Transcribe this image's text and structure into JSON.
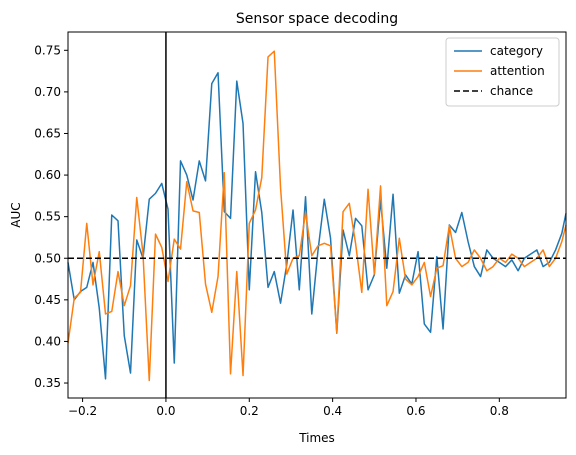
{
  "chart_data": {
    "type": "line",
    "title": "Sensor space decoding",
    "xlabel": "Times",
    "ylabel": "AUC",
    "xlim": [
      -0.235,
      0.96
    ],
    "ylim": [
      0.332,
      0.772
    ],
    "xticks": [
      -0.2,
      0.0,
      0.2,
      0.4,
      0.6,
      0.8
    ],
    "xtick_labels": [
      "−0.2",
      "0.0",
      "0.2",
      "0.4",
      "0.6",
      "0.8"
    ],
    "yticks": [
      0.35,
      0.4,
      0.45,
      0.5,
      0.55,
      0.6,
      0.65,
      0.7,
      0.75
    ],
    "ytick_labels": [
      "0.35",
      "0.40",
      "0.45",
      "0.50",
      "0.55",
      "0.60",
      "0.65",
      "0.70",
      "0.75"
    ],
    "grid": false,
    "legend_position": "top-right",
    "chance_level": 0.5,
    "onset_line_x": 0.0,
    "x": [
      -0.235,
      -0.22,
      -0.205,
      -0.19,
      -0.175,
      -0.16,
      -0.145,
      -0.13,
      -0.115,
      -0.1,
      -0.085,
      -0.07,
      -0.055,
      -0.04,
      -0.025,
      -0.01,
      0.005,
      0.02,
      0.035,
      0.05,
      0.065,
      0.08,
      0.095,
      0.11,
      0.125,
      0.14,
      0.155,
      0.17,
      0.185,
      0.2,
      0.215,
      0.23,
      0.245,
      0.26,
      0.275,
      0.29,
      0.305,
      0.32,
      0.335,
      0.35,
      0.365,
      0.38,
      0.395,
      0.41,
      0.425,
      0.44,
      0.455,
      0.47,
      0.485,
      0.5,
      0.515,
      0.53,
      0.545,
      0.56,
      0.575,
      0.59,
      0.605,
      0.62,
      0.635,
      0.65,
      0.665,
      0.68,
      0.695,
      0.71,
      0.725,
      0.74,
      0.755,
      0.77,
      0.785,
      0.8,
      0.815,
      0.83,
      0.845,
      0.86,
      0.875,
      0.89,
      0.905,
      0.92,
      0.935,
      0.95,
      0.96
    ],
    "series": [
      {
        "name": "category",
        "color": "#1f77b4",
        "values": [
          0.495,
          0.45,
          0.46,
          0.465,
          0.495,
          0.44,
          0.355,
          0.552,
          0.545,
          0.407,
          0.362,
          0.522,
          0.5,
          0.571,
          0.578,
          0.59,
          0.559,
          0.374,
          0.617,
          0.6,
          0.57,
          0.617,
          0.593,
          0.71,
          0.723,
          0.556,
          0.548,
          0.713,
          0.662,
          0.462,
          0.604,
          0.555,
          0.465,
          0.484,
          0.446,
          0.493,
          0.558,
          0.462,
          0.574,
          0.433,
          0.51,
          0.571,
          0.524,
          0.41,
          0.534,
          0.503,
          0.548,
          0.539,
          0.462,
          0.48,
          0.57,
          0.488,
          0.577,
          0.458,
          0.48,
          0.469,
          0.508,
          0.421,
          0.411,
          0.502,
          0.415,
          0.54,
          0.531,
          0.555,
          0.52,
          0.49,
          0.478,
          0.51,
          0.5,
          0.495,
          0.49,
          0.498,
          0.485,
          0.5,
          0.505,
          0.51,
          0.49,
          0.495,
          0.51,
          0.53,
          0.554
        ]
      },
      {
        "name": "attention",
        "color": "#ff7f0e",
        "values": [
          0.398,
          0.452,
          0.459,
          0.542,
          0.468,
          0.508,
          0.433,
          0.436,
          0.484,
          0.443,
          0.467,
          0.573,
          0.505,
          0.353,
          0.529,
          0.513,
          0.472,
          0.523,
          0.511,
          0.592,
          0.557,
          0.555,
          0.469,
          0.435,
          0.478,
          0.603,
          0.361,
          0.484,
          0.359,
          0.542,
          0.558,
          0.597,
          0.742,
          0.749,
          0.585,
          0.481,
          0.5,
          0.503,
          0.555,
          0.503,
          0.515,
          0.518,
          0.515,
          0.411,
          0.556,
          0.566,
          0.518,
          0.459,
          0.583,
          0.481,
          0.587,
          0.443,
          0.46,
          0.524,
          0.475,
          0.468,
          0.478,
          0.495,
          0.454,
          0.488,
          0.491,
          0.539,
          0.5,
          0.49,
          0.495,
          0.51,
          0.5,
          0.485,
          0.49,
          0.5,
          0.495,
          0.505,
          0.5,
          0.49,
          0.495,
          0.5,
          0.51,
          0.49,
          0.5,
          0.52,
          0.54
        ]
      }
    ],
    "legend": [
      {
        "label": "category",
        "color": "#1f77b4",
        "style": "solid"
      },
      {
        "label": "attention",
        "color": "#ff7f0e",
        "style": "solid"
      },
      {
        "label": "chance",
        "color": "#000000",
        "style": "dashed"
      }
    ]
  }
}
